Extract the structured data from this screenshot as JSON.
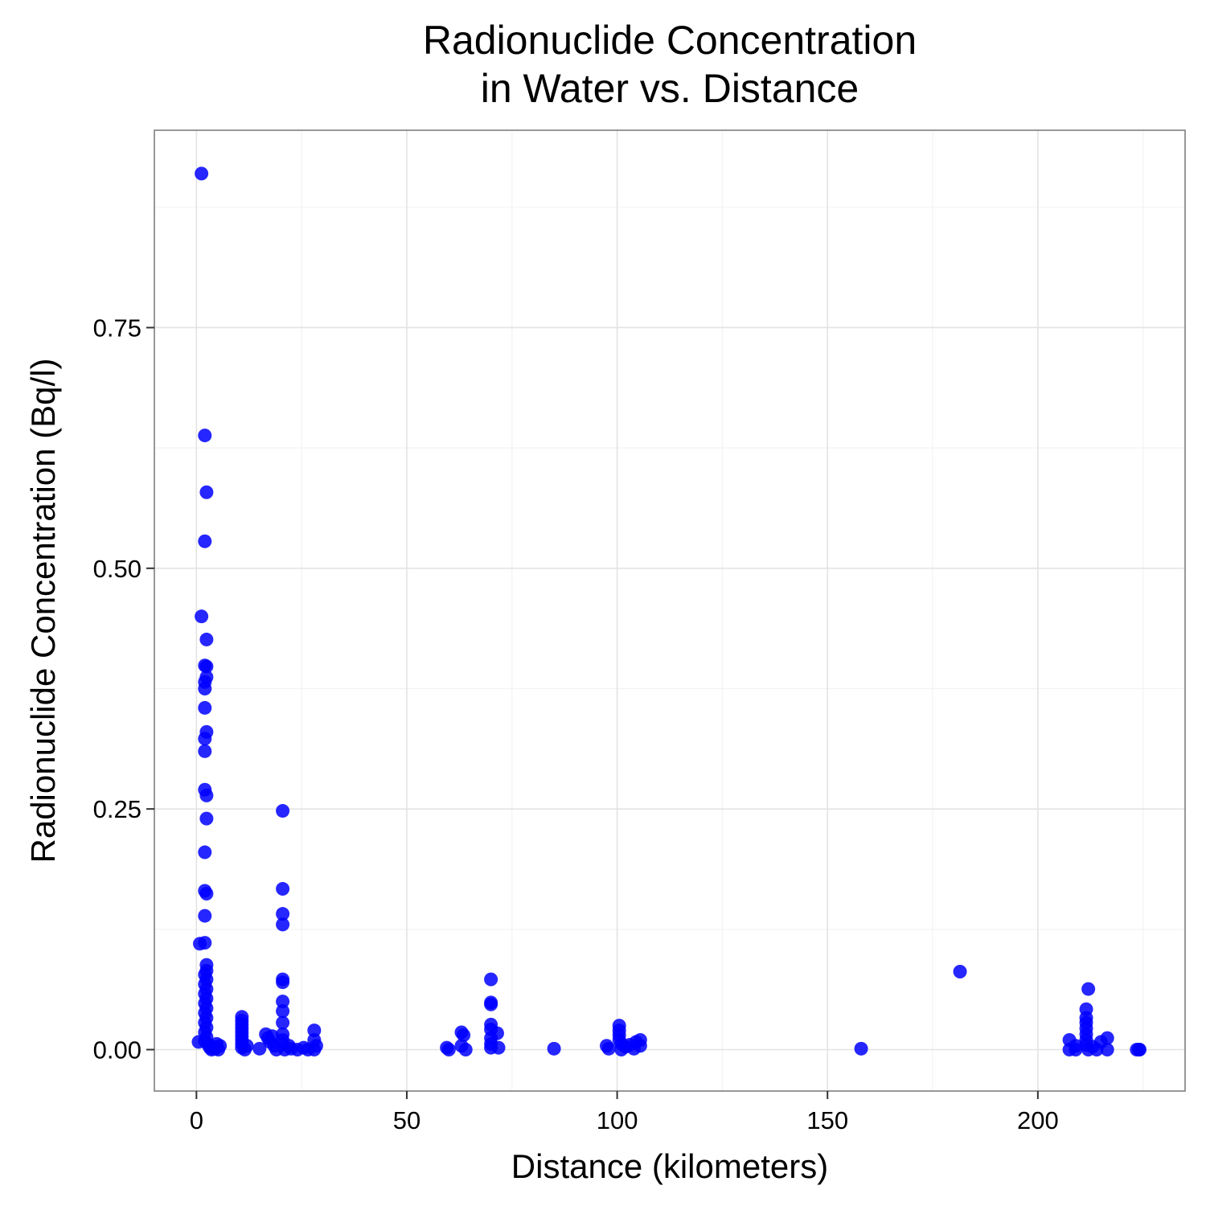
{
  "chart_data": {
    "type": "scatter",
    "title": "Radionuclide Concentration\nin Water vs. Distance",
    "xlabel": "Distance (kilometers)",
    "ylabel": "Radionuclide Concentration (Bq/l)",
    "xlim": [
      -10,
      235
    ],
    "ylim": [
      -0.043,
      0.955
    ],
    "x_ticks": [
      0,
      50,
      100,
      150,
      200
    ],
    "x_tick_labels": [
      "0",
      "50",
      "100",
      "150",
      "200"
    ],
    "y_ticks": [
      0,
      0.25,
      0.5,
      0.75
    ],
    "y_tick_labels": [
      "0.00",
      "0.25",
      "0.50",
      "0.75"
    ],
    "grid": true,
    "point_color": "#0000ff",
    "points": [
      [
        1.2,
        0.91
      ],
      [
        2.0,
        0.638
      ],
      [
        2.4,
        0.579
      ],
      [
        2.0,
        0.528
      ],
      [
        1.2,
        0.45
      ],
      [
        2.4,
        0.426
      ],
      [
        2.0,
        0.399
      ],
      [
        2.4,
        0.398
      ],
      [
        2.4,
        0.387
      ],
      [
        2.0,
        0.382
      ],
      [
        2.0,
        0.375
      ],
      [
        2.0,
        0.355
      ],
      [
        2.4,
        0.33
      ],
      [
        2.0,
        0.323
      ],
      [
        2.0,
        0.31
      ],
      [
        2.0,
        0.27
      ],
      [
        2.4,
        0.264
      ],
      [
        2.4,
        0.24
      ],
      [
        2.0,
        0.205
      ],
      [
        2.0,
        0.165
      ],
      [
        2.4,
        0.162
      ],
      [
        2.0,
        0.139
      ],
      [
        0.8,
        0.11
      ],
      [
        2.0,
        0.111
      ],
      [
        2.4,
        0.088
      ],
      [
        2.4,
        0.082
      ],
      [
        2.0,
        0.078
      ],
      [
        2.4,
        0.073
      ],
      [
        2.0,
        0.068
      ],
      [
        2.4,
        0.063
      ],
      [
        2.0,
        0.058
      ],
      [
        2.4,
        0.053
      ],
      [
        2.0,
        0.048
      ],
      [
        2.4,
        0.043
      ],
      [
        2.0,
        0.038
      ],
      [
        2.4,
        0.033
      ],
      [
        2.0,
        0.028
      ],
      [
        2.4,
        0.023
      ],
      [
        2.0,
        0.018
      ],
      [
        2.4,
        0.013
      ],
      [
        2.0,
        0.009
      ],
      [
        0.5,
        0.008
      ],
      [
        2.8,
        0.005
      ],
      [
        3.2,
        0.002
      ],
      [
        3.6,
        0.0
      ],
      [
        4.0,
        0.003
      ],
      [
        4.4,
        0.001
      ],
      [
        4.8,
        0.006
      ],
      [
        5.2,
        0.0
      ],
      [
        5.6,
        0.004
      ],
      [
        10.8,
        0.034
      ],
      [
        10.8,
        0.03
      ],
      [
        10.8,
        0.026
      ],
      [
        10.8,
        0.022
      ],
      [
        10.8,
        0.018
      ],
      [
        10.8,
        0.014
      ],
      [
        10.8,
        0.01
      ],
      [
        10.8,
        0.006
      ],
      [
        10.8,
        0.002
      ],
      [
        11.5,
        0.0
      ],
      [
        12.0,
        0.004
      ],
      [
        15.0,
        0.001
      ],
      [
        16.5,
        0.016
      ],
      [
        17.0,
        0.012
      ],
      [
        18.0,
        0.014
      ],
      [
        17.5,
        0.008
      ],
      [
        18.5,
        0.004
      ],
      [
        19.0,
        0.0
      ],
      [
        20.5,
        0.248
      ],
      [
        20.5,
        0.167
      ],
      [
        20.5,
        0.141
      ],
      [
        20.5,
        0.13
      ],
      [
        20.5,
        0.073
      ],
      [
        20.5,
        0.07
      ],
      [
        20.5,
        0.05
      ],
      [
        20.5,
        0.04
      ],
      [
        20.5,
        0.028
      ],
      [
        20.5,
        0.016
      ],
      [
        20.5,
        0.01
      ],
      [
        20.5,
        0.005
      ],
      [
        21.0,
        0.0
      ],
      [
        22.0,
        0.004
      ],
      [
        22.5,
        0.001
      ],
      [
        24.0,
        0.0
      ],
      [
        25.5,
        0.002
      ],
      [
        26.5,
        0.0
      ],
      [
        28.0,
        0.02
      ],
      [
        28.0,
        0.01
      ],
      [
        28.5,
        0.004
      ],
      [
        28.0,
        0.0
      ],
      [
        59.5,
        0.002
      ],
      [
        60.0,
        0.0
      ],
      [
        63.0,
        0.018
      ],
      [
        63.5,
        0.015
      ],
      [
        63.0,
        0.004
      ],
      [
        64.0,
        0.0
      ],
      [
        70.0,
        0.073
      ],
      [
        70.0,
        0.049
      ],
      [
        70.0,
        0.047
      ],
      [
        70.0,
        0.026
      ],
      [
        70.0,
        0.021
      ],
      [
        70.0,
        0.012
      ],
      [
        70.0,
        0.006
      ],
      [
        70.0,
        0.002
      ],
      [
        71.5,
        0.017
      ],
      [
        71.8,
        0.002
      ],
      [
        85.0,
        0.001
      ],
      [
        97.5,
        0.004
      ],
      [
        98.0,
        0.001
      ],
      [
        100.5,
        0.025
      ],
      [
        100.5,
        0.02
      ],
      [
        100.5,
        0.015
      ],
      [
        100.5,
        0.01
      ],
      [
        101.0,
        0.006
      ],
      [
        101.0,
        0.0
      ],
      [
        102.0,
        0.003
      ],
      [
        103.0,
        0.005
      ],
      [
        104.0,
        0.001
      ],
      [
        104.5,
        0.008
      ],
      [
        105.5,
        0.01
      ],
      [
        105.5,
        0.004
      ],
      [
        158.0,
        0.001
      ],
      [
        181.5,
        0.081
      ],
      [
        207.5,
        0.01
      ],
      [
        207.5,
        0.0
      ],
      [
        209.0,
        0.004
      ],
      [
        209.0,
        0.0
      ],
      [
        212.0,
        0.063
      ],
      [
        211.5,
        0.042
      ],
      [
        211.5,
        0.033
      ],
      [
        211.5,
        0.028
      ],
      [
        211.5,
        0.022
      ],
      [
        211.5,
        0.016
      ],
      [
        211.5,
        0.01
      ],
      [
        211.5,
        0.005
      ],
      [
        212.0,
        0.0
      ],
      [
        213.0,
        0.003
      ],
      [
        214.0,
        0.0
      ],
      [
        215.0,
        0.008
      ],
      [
        216.5,
        0.012
      ],
      [
        216.5,
        0.0
      ],
      [
        223.5,
        0.0
      ],
      [
        224.0,
        0.0
      ],
      [
        224.2,
        0.0
      ]
    ]
  }
}
